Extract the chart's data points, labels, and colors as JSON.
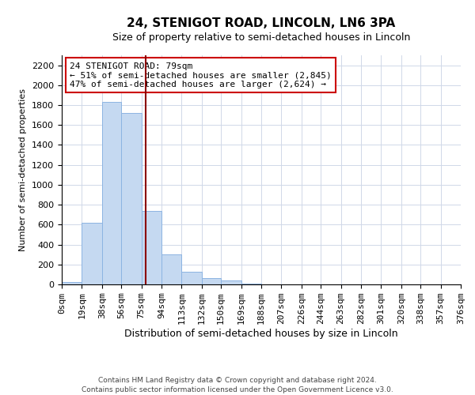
{
  "title": "24, STENIGOT ROAD, LINCOLN, LN6 3PA",
  "subtitle": "Size of property relative to semi-detached houses in Lincoln",
  "xlabel": "Distribution of semi-detached houses by size in Lincoln",
  "ylabel": "Number of semi-detached properties",
  "annotation_line1": "24 STENIGOT ROAD: 79sqm",
  "annotation_line2": "← 51% of semi-detached houses are smaller (2,845)",
  "annotation_line3": "47% of semi-detached houses are larger (2,624) →",
  "footer_line1": "Contains HM Land Registry data © Crown copyright and database right 2024.",
  "footer_line2": "Contains public sector information licensed under the Open Government Licence v3.0.",
  "bin_edges": [
    0,
    19,
    38,
    56,
    75,
    94,
    113,
    132,
    150,
    169,
    188,
    207,
    226,
    244,
    263,
    282,
    301,
    320,
    338,
    357,
    376
  ],
  "bin_labels": [
    "0sqm",
    "19sqm",
    "38sqm",
    "56sqm",
    "75sqm",
    "94sqm",
    "113sqm",
    "132sqm",
    "150sqm",
    "169sqm",
    "188sqm",
    "207sqm",
    "226sqm",
    "244sqm",
    "263sqm",
    "282sqm",
    "301sqm",
    "320sqm",
    "338sqm",
    "357sqm",
    "376sqm"
  ],
  "counts": [
    25,
    620,
    1830,
    1720,
    740,
    305,
    130,
    65,
    40,
    5,
    0,
    0,
    0,
    0,
    0,
    0,
    0,
    0,
    0,
    0
  ],
  "property_value": 79,
  "bar_color": "#c5d9f1",
  "bar_edge_color": "#8db4e2",
  "marker_line_color": "#8b0000",
  "grid_color": "#d0d8e8",
  "background_color": "#ffffff",
  "annotation_box_color": "#ffffff",
  "annotation_box_edge": "#cc0000",
  "ylim": [
    0,
    2300
  ],
  "yticks": [
    0,
    200,
    400,
    600,
    800,
    1000,
    1200,
    1400,
    1600,
    1800,
    2000,
    2200
  ],
  "title_fontsize": 11,
  "subtitle_fontsize": 9,
  "ylabel_fontsize": 8,
  "xlabel_fontsize": 9,
  "tick_fontsize": 8,
  "annotation_fontsize": 8,
  "footer_fontsize": 6.5
}
